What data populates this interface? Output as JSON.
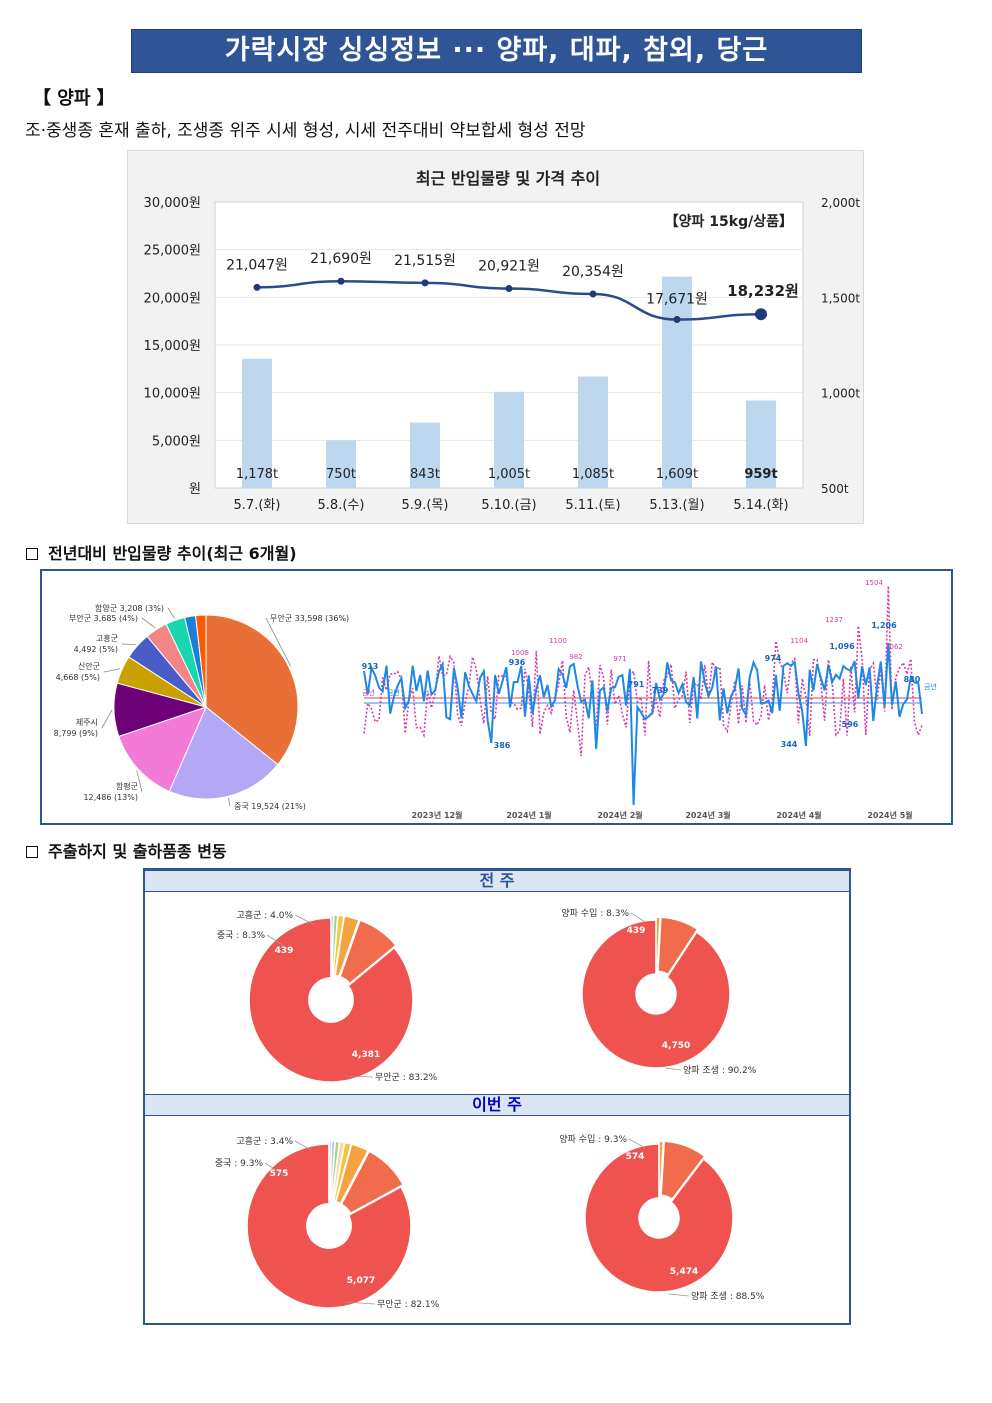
{
  "header": {
    "title": "가락시장 싱싱정보 ··· 양파, 대파, 참외, 당근",
    "section": "【 양파 】",
    "summary": "조·중생종 혼재 출하, 조생종 위주 시세 형성, 시세 전주대비 약보합세 형성 전망"
  },
  "price_chart": {
    "title": "최근 반입물량 및 가격 추이",
    "unit_note": "【양파 15kg/상품】",
    "left_axis": [
      "30,000원",
      "25,000원",
      "20,000원",
      "15,000원",
      "10,000원",
      "5,000원",
      "원"
    ],
    "right_axis": [
      "2,000t",
      "1,500t",
      "1,000t",
      "500t"
    ],
    "colors": {
      "bar": "#bdd7ee",
      "line": "#2f4a8a"
    }
  },
  "chart_data": [
    {
      "type": "bar+line",
      "title": "최근 반입물량 및 가격 추이",
      "categories": [
        "5.7.(화)",
        "5.8.(수)",
        "5.9.(목)",
        "5.10.(금)",
        "5.11.(토)",
        "5.13.(월)",
        "5.14.(화)"
      ],
      "series": [
        {
          "values": [
            1178,
            750,
            843,
            1005,
            1085,
            1609,
            959
          ],
          "labels": [
            "1,178t",
            "750t",
            "843t",
            "1,005t",
            "1,085t",
            "1,609t",
            "959t"
          ],
          "axis": "right",
          "type": "bar"
        },
        {
          "values": [
            21047,
            21690,
            21515,
            20921,
            20354,
            17671,
            18232
          ],
          "labels": [
            "21,047원",
            "21,690원",
            "21,515원",
            "20,921원",
            "20,354원",
            "17,671원",
            "18,232원"
          ],
          "axis": "left",
          "type": "line"
        }
      ],
      "ylim_left": [
        0,
        30000
      ],
      "ylim_right": [
        500,
        2000
      ]
    },
    {
      "type": "pie",
      "slices": [
        {
          "label": "무안군 33,598 (36%)",
          "value": 33598,
          "color": "#e87036"
        },
        {
          "label": "중국 19,524 (21%)",
          "value": 19524,
          "color": "#b4a7f5"
        },
        {
          "label": "함평군 12,486 (13%)",
          "value": 12486,
          "color": "#f27bd8"
        },
        {
          "label": "제주시 8,799 (9%)",
          "value": 8799,
          "color": "#6e0078"
        },
        {
          "label": "신안군 4,668 (5%)",
          "value": 4668,
          "color": "#c9a200"
        },
        {
          "label": "고흥군 4,492 (5%)",
          "value": 4492,
          "color": "#4a5cc7"
        },
        {
          "label": "부안군 3,685 (4%)",
          "value": 3685,
          "color": "#f28585"
        },
        {
          "label": "함양군 3,208 (3%)",
          "value": 3208,
          "color": "#19d6b0"
        },
        {
          "label": "",
          "value": 1800,
          "color": "#1a7fd9"
        },
        {
          "label": "",
          "value": 1700,
          "color": "#ff5a00"
        }
      ]
    },
    {
      "type": "line",
      "x_ticks": [
        "2023년 12월",
        "2024년 1월",
        "2024년 2월",
        "2024년 3월",
        "2024년 4월",
        "2024년 5월"
      ],
      "point_labels_current": [
        "913",
        "936",
        "386",
        "791",
        "739",
        "974",
        "1,206",
        "1,096",
        "344",
        "596",
        "830"
      ],
      "point_labels_prev": [
        "1008",
        "1100",
        "982",
        "971",
        "1104",
        "1237",
        "1504",
        "1062"
      ],
      "series_labels": [
        "금년",
        "금년",
        "금년"
      ]
    },
    {
      "type": "donut",
      "slices": [
        {
          "value": 4381,
          "label": "4,381",
          "color": "#ef5350"
        },
        {
          "value": 439,
          "label": "439",
          "color": "#f06c4c"
        },
        {
          "value": 150,
          "label": "",
          "color": "#f4a340"
        },
        {
          "value": 60,
          "label": "",
          "color": "#f5c542"
        },
        {
          "value": 40,
          "label": "",
          "color": "#a8d08d"
        },
        {
          "value": 25,
          "label": "",
          "color": "#9fc5e8"
        }
      ],
      "callouts": [
        "고흥군 : 4.0%",
        "중국 : 8.3%",
        "무안군 : 83.2%"
      ]
    },
    {
      "type": "donut",
      "slices": [
        {
          "value": 4750,
          "label": "4,750",
          "color": "#ef5350"
        },
        {
          "value": 439,
          "label": "439",
          "color": "#f06c4c"
        },
        {
          "value": 45,
          "label": "",
          "color": "#f4a340"
        }
      ],
      "callouts": [
        "양파 수입 : 8.3%",
        "양파 조생 : 90.2%"
      ]
    },
    {
      "type": "donut",
      "slices": [
        {
          "value": 5077,
          "label": "5,077",
          "color": "#ef5350"
        },
        {
          "value": 575,
          "label": "575",
          "color": "#f06c4c"
        },
        {
          "value": 210,
          "label": "",
          "color": "#f4a340"
        },
        {
          "value": 80,
          "label": "",
          "color": "#f5c542"
        },
        {
          "value": 60,
          "label": "",
          "color": "#f7dca0"
        },
        {
          "value": 50,
          "label": "",
          "color": "#a8d08d"
        },
        {
          "value": 40,
          "label": "",
          "color": "#9fc5e8"
        },
        {
          "value": 30,
          "label": "",
          "color": "#cccccc"
        }
      ],
      "callouts": [
        "고흥군 : 3.4%",
        "중국 : 9.3%",
        "무안군 : 82.1%"
      ]
    },
    {
      "type": "donut",
      "slices": [
        {
          "value": 5474,
          "label": "5,474",
          "color": "#ef5350"
        },
        {
          "value": 574,
          "label": "574",
          "color": "#f06c4c"
        },
        {
          "value": 55,
          "label": "",
          "color": "#f4a340"
        }
      ],
      "callouts": [
        "양파 수입 : 9.3%",
        "양파 조생 : 88.5%"
      ]
    }
  ],
  "trend_section": {
    "heading": "전년대비 반입물량 추이(최근 6개월)"
  },
  "ship_section": {
    "heading": "주출하지 및 출하품종 변동",
    "last_week": "전 주",
    "this_week": "이번 주"
  }
}
